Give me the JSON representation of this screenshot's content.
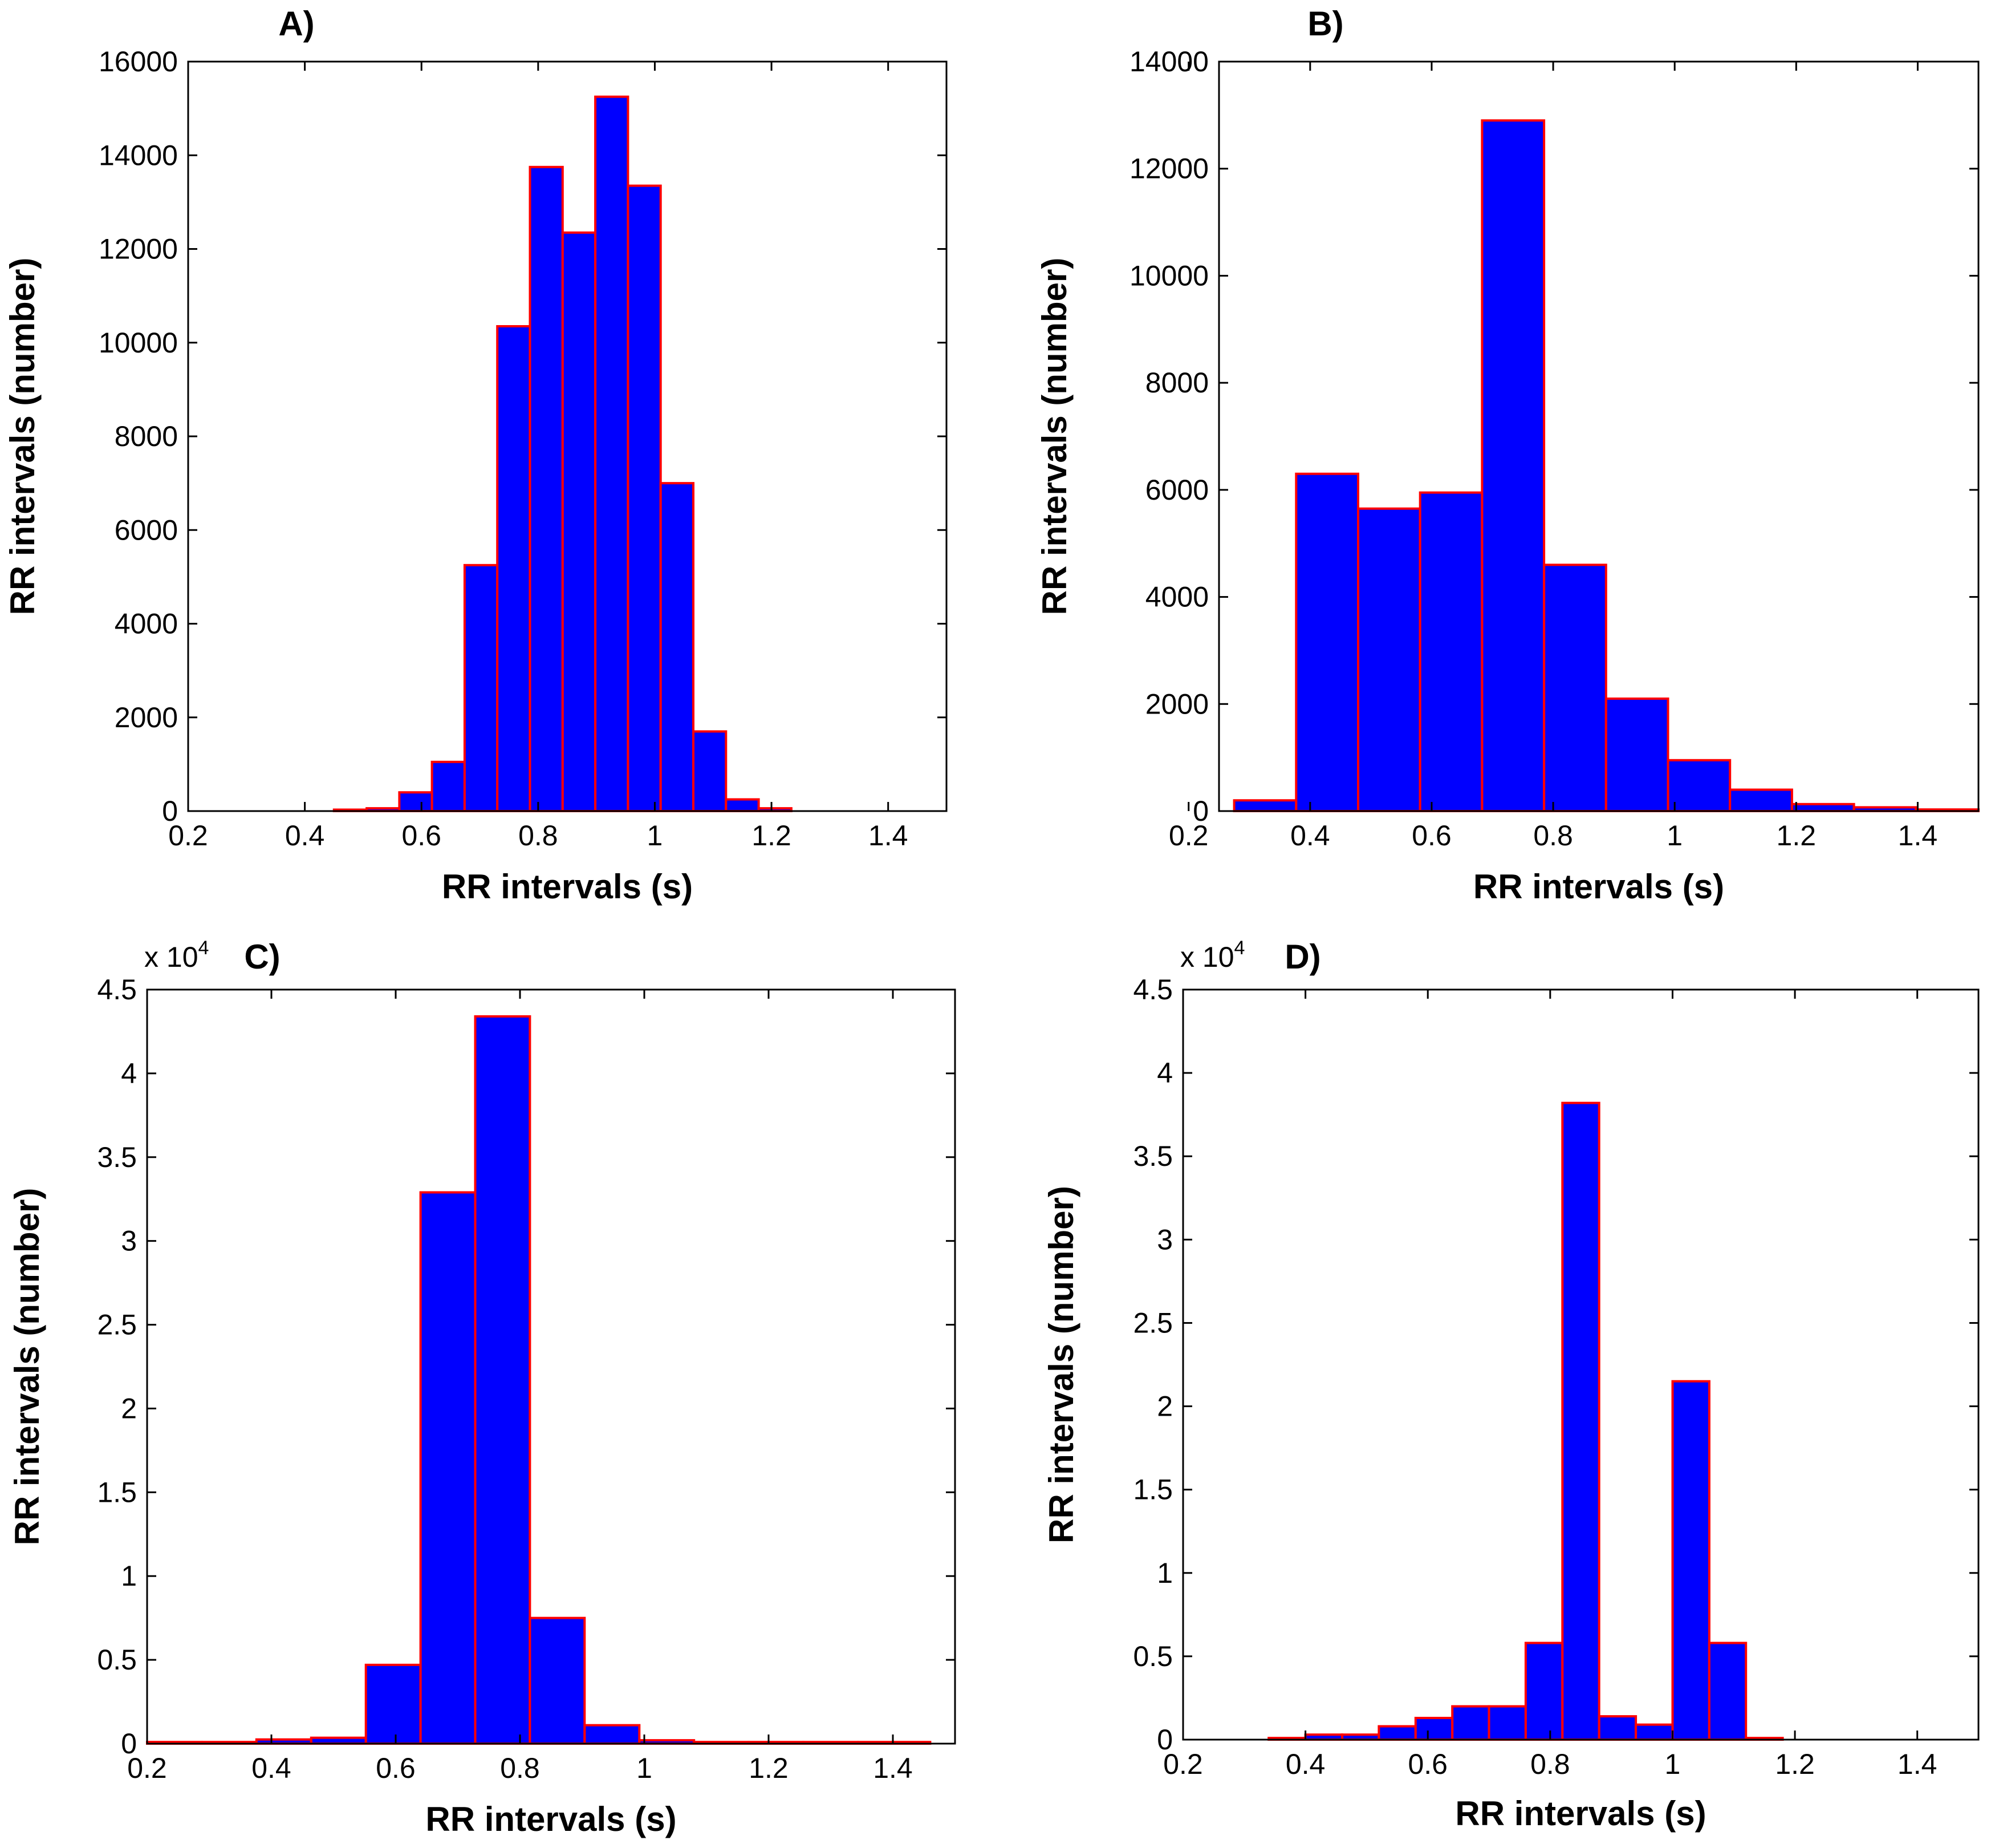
{
  "colors": {
    "bar_fill": "#0000ff",
    "bar_edge": "#ff0000",
    "axes": "#000000",
    "background": "#ffffff"
  },
  "chart_data": [
    {
      "type": "bar",
      "panel_label": "A)",
      "xlabel": "RR intervals (s)",
      "ylabel": "RR intervals (number)",
      "xlim": [
        0.2,
        1.5
      ],
      "ylim": [
        0,
        16000
      ],
      "xticks": [
        0.2,
        0.4,
        0.6,
        0.8,
        1,
        1.2,
        1.4
      ],
      "xtick_labels": [
        "0.2",
        "0.4",
        "0.6",
        "0.8",
        "1",
        "1.2",
        "1.4"
      ],
      "yticks": [
        0,
        2000,
        4000,
        6000,
        8000,
        10000,
        12000,
        14000,
        16000
      ],
      "ytick_labels": [
        "0",
        "2000",
        "4000",
        "6000",
        "8000",
        "10000",
        "12000",
        "14000",
        "16000"
      ],
      "exponent_label": "",
      "bin_edges": [
        0.45,
        0.506,
        0.562,
        0.618,
        0.674,
        0.73,
        0.786,
        0.842,
        0.898,
        0.954,
        1.01,
        1.066,
        1.122,
        1.178,
        1.234
      ],
      "values": [
        30,
        60,
        400,
        1050,
        5250,
        10350,
        13750,
        12350,
        15250,
        13350,
        7000,
        1700,
        250,
        60
      ]
    },
    {
      "type": "bar",
      "panel_label": "B)",
      "xlabel": "RR intervals (s)",
      "ylabel": "RR intervals (number)",
      "xlim": [
        0.25,
        1.5
      ],
      "ylim": [
        0,
        14000
      ],
      "xticks": [
        0.2,
        0.4,
        0.6,
        0.8,
        1,
        1.2,
        1.4
      ],
      "xtick_labels": [
        "0.2",
        "0.4",
        "0.6",
        "0.8",
        "1",
        "1.2",
        "1.4"
      ],
      "yticks": [
        0,
        2000,
        4000,
        6000,
        8000,
        10000,
        12000,
        14000
      ],
      "ytick_labels": [
        "0",
        "2000",
        "4000",
        "6000",
        "8000",
        "10000",
        "12000",
        "14000"
      ],
      "exponent_label": "",
      "bin_edges": [
        0.275,
        0.377,
        0.479,
        0.581,
        0.683,
        0.785,
        0.887,
        0.989,
        1.091,
        1.193,
        1.295,
        1.397,
        1.5
      ],
      "values": [
        200,
        6300,
        5650,
        5950,
        12900,
        4600,
        2100,
        950,
        400,
        130,
        70,
        30
      ]
    },
    {
      "type": "bar",
      "panel_label": "C)",
      "xlabel": "RR intervals (s)",
      "ylabel": "RR intervals (number)",
      "xlim": [
        0.2,
        1.5
      ],
      "ylim": [
        0,
        45000
      ],
      "xticks": [
        0.2,
        0.4,
        0.6,
        0.8,
        1,
        1.2,
        1.4
      ],
      "xtick_labels": [
        "0.2",
        "0.4",
        "0.6",
        "0.8",
        "1",
        "1.2",
        "1.4"
      ],
      "yticks": [
        0,
        5000,
        10000,
        15000,
        20000,
        25000,
        30000,
        35000,
        40000,
        45000
      ],
      "ytick_labels": [
        "0",
        "0.5",
        "1",
        "1.5",
        "2",
        "2.5",
        "3",
        "3.5",
        "4",
        "4.5"
      ],
      "exponent_label": "x 10",
      "exponent_power": "4",
      "bin_edges": [
        0.2,
        0.288,
        0.376,
        0.464,
        0.552,
        0.64,
        0.728,
        0.816,
        0.904,
        0.992,
        1.08,
        1.168,
        1.256,
        1.344,
        1.46
      ],
      "values": [
        100,
        100,
        250,
        350,
        4700,
        32900,
        43400,
        7500,
        1100,
        200,
        100,
        100,
        100,
        100
      ]
    },
    {
      "type": "bar",
      "panel_label": "D)",
      "xlabel": "RR intervals (s)",
      "ylabel": "RR intervals (number)",
      "xlim": [
        0.2,
        1.5
      ],
      "ylim": [
        0,
        45000
      ],
      "xticks": [
        0.2,
        0.4,
        0.6,
        0.8,
        1,
        1.2,
        1.4
      ],
      "xtick_labels": [
        "0.2",
        "0.4",
        "0.6",
        "0.8",
        "1",
        "1.2",
        "1.4"
      ],
      "yticks": [
        0,
        5000,
        10000,
        15000,
        20000,
        25000,
        30000,
        35000,
        40000,
        45000
      ],
      "ytick_labels": [
        "0",
        "0.5",
        "1",
        "1.5",
        "2",
        "2.5",
        "3",
        "3.5",
        "4",
        "4.5"
      ],
      "exponent_label": "x 10",
      "exponent_power": "4",
      "bin_edges": [
        0.34,
        0.4,
        0.46,
        0.52,
        0.58,
        0.64,
        0.7,
        0.76,
        0.82,
        0.88,
        0.94,
        1.0,
        1.06,
        1.12,
        1.18
      ],
      "values": [
        100,
        300,
        300,
        800,
        1300,
        2000,
        2000,
        5800,
        38200,
        1400,
        900,
        21500,
        5800,
        100
      ]
    }
  ]
}
